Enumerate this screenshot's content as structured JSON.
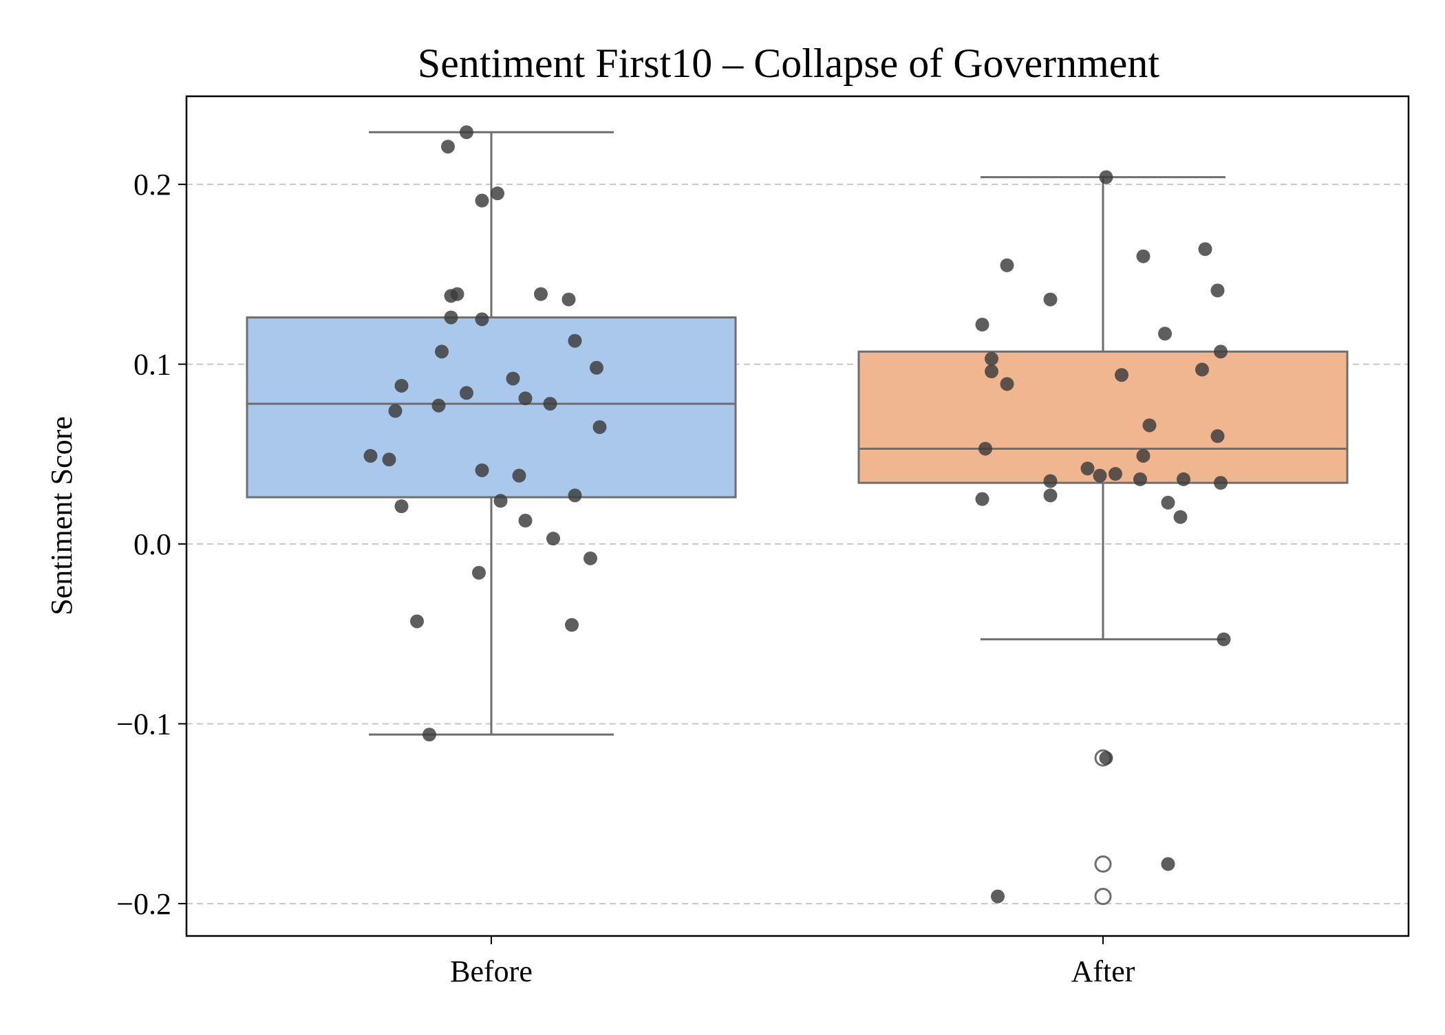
{
  "chart_data": {
    "type": "box",
    "title": "Sentiment First10 – Collapse of Government",
    "xlabel": "",
    "ylabel": "Sentiment Score",
    "ylim": [
      -0.218,
      0.249
    ],
    "yticks": [
      {
        "value": 0.2,
        "label": "0.2"
      },
      {
        "value": 0.1,
        "label": "0.1"
      },
      {
        "value": 0.0,
        "label": "0.0"
      },
      {
        "value": -0.1,
        "label": "−0.1"
      },
      {
        "value": -0.2,
        "label": "−0.2"
      }
    ],
    "grid": "y-dashed",
    "categories": [
      "Before",
      "After"
    ],
    "boxes": [
      {
        "category": "Before",
        "color": "#a9c8ec",
        "q1": 0.026,
        "median": 0.078,
        "q3": 0.126,
        "whisker_low": -0.106,
        "whisker_high": 0.229,
        "outliers": []
      },
      {
        "category": "After",
        "color": "#f0b690",
        "q1": 0.034,
        "median": 0.053,
        "q3": 0.107,
        "whisker_low": -0.053,
        "whisker_high": 0.204,
        "outliers": [
          -0.119,
          -0.178,
          -0.196
        ]
      }
    ],
    "points": [
      {
        "category": "Before",
        "x": -0.04,
        "y": 0.229
      },
      {
        "category": "Before",
        "x": -0.07,
        "y": 0.221
      },
      {
        "category": "Before",
        "x": 0.01,
        "y": 0.195
      },
      {
        "category": "Before",
        "x": -0.015,
        "y": 0.191
      },
      {
        "category": "Before",
        "x": -0.055,
        "y": 0.139
      },
      {
        "category": "Before",
        "x": -0.065,
        "y": 0.138
      },
      {
        "category": "Before",
        "x": 0.08,
        "y": 0.139
      },
      {
        "category": "Before",
        "x": 0.125,
        "y": 0.136
      },
      {
        "category": "Before",
        "x": -0.065,
        "y": 0.126
      },
      {
        "category": "Before",
        "x": -0.015,
        "y": 0.125
      },
      {
        "category": "Before",
        "x": 0.135,
        "y": 0.113
      },
      {
        "category": "Before",
        "x": -0.08,
        "y": 0.107
      },
      {
        "category": "Before",
        "x": 0.17,
        "y": 0.098
      },
      {
        "category": "Before",
        "x": 0.035,
        "y": 0.092
      },
      {
        "category": "Before",
        "x": -0.145,
        "y": 0.088
      },
      {
        "category": "Before",
        "x": -0.04,
        "y": 0.084
      },
      {
        "category": "Before",
        "x": 0.055,
        "y": 0.081
      },
      {
        "category": "Before",
        "x": 0.095,
        "y": 0.078
      },
      {
        "category": "Before",
        "x": -0.085,
        "y": 0.077
      },
      {
        "category": "Before",
        "x": -0.155,
        "y": 0.074
      },
      {
        "category": "Before",
        "x": 0.175,
        "y": 0.065
      },
      {
        "category": "Before",
        "x": -0.195,
        "y": 0.049
      },
      {
        "category": "Before",
        "x": -0.165,
        "y": 0.047
      },
      {
        "category": "Before",
        "x": -0.015,
        "y": 0.041
      },
      {
        "category": "Before",
        "x": 0.045,
        "y": 0.038
      },
      {
        "category": "Before",
        "x": 0.135,
        "y": 0.027
      },
      {
        "category": "Before",
        "x": 0.015,
        "y": 0.024
      },
      {
        "category": "Before",
        "x": -0.145,
        "y": 0.021
      },
      {
        "category": "Before",
        "x": 0.055,
        "y": 0.013
      },
      {
        "category": "Before",
        "x": 0.1,
        "y": 0.003
      },
      {
        "category": "Before",
        "x": 0.16,
        "y": -0.008
      },
      {
        "category": "Before",
        "x": -0.02,
        "y": -0.016
      },
      {
        "category": "Before",
        "x": -0.12,
        "y": -0.043
      },
      {
        "category": "Before",
        "x": 0.13,
        "y": -0.045
      },
      {
        "category": "Before",
        "x": -0.1,
        "y": -0.106
      },
      {
        "category": "After",
        "x": 0.005,
        "y": 0.204
      },
      {
        "category": "After",
        "x": 0.165,
        "y": 0.164
      },
      {
        "category": "After",
        "x": 0.065,
        "y": 0.16
      },
      {
        "category": "After",
        "x": -0.155,
        "y": 0.155
      },
      {
        "category": "After",
        "x": 0.185,
        "y": 0.141
      },
      {
        "category": "After",
        "x": -0.085,
        "y": 0.136
      },
      {
        "category": "After",
        "x": -0.195,
        "y": 0.122
      },
      {
        "category": "After",
        "x": 0.1,
        "y": 0.117
      },
      {
        "category": "After",
        "x": 0.19,
        "y": 0.107
      },
      {
        "category": "After",
        "x": -0.18,
        "y": 0.103
      },
      {
        "category": "After",
        "x": 0.16,
        "y": 0.097
      },
      {
        "category": "After",
        "x": -0.18,
        "y": 0.096
      },
      {
        "category": "After",
        "x": 0.03,
        "y": 0.094
      },
      {
        "category": "After",
        "x": -0.155,
        "y": 0.089
      },
      {
        "category": "After",
        "x": 0.075,
        "y": 0.066
      },
      {
        "category": "After",
        "x": 0.185,
        "y": 0.06
      },
      {
        "category": "After",
        "x": -0.19,
        "y": 0.053
      },
      {
        "category": "After",
        "x": 0.065,
        "y": 0.049
      },
      {
        "category": "After",
        "x": -0.025,
        "y": 0.042
      },
      {
        "category": "After",
        "x": 0.02,
        "y": 0.039
      },
      {
        "category": "After",
        "x": -0.005,
        "y": 0.038
      },
      {
        "category": "After",
        "x": 0.06,
        "y": 0.036
      },
      {
        "category": "After",
        "x": 0.13,
        "y": 0.036
      },
      {
        "category": "After",
        "x": -0.085,
        "y": 0.035
      },
      {
        "category": "After",
        "x": 0.19,
        "y": 0.034
      },
      {
        "category": "After",
        "x": -0.085,
        "y": 0.027
      },
      {
        "category": "After",
        "x": -0.195,
        "y": 0.025
      },
      {
        "category": "After",
        "x": 0.105,
        "y": 0.023
      },
      {
        "category": "After",
        "x": 0.125,
        "y": 0.015
      },
      {
        "category": "After",
        "x": 0.195,
        "y": -0.053
      },
      {
        "category": "After",
        "x": 0.005,
        "y": -0.119
      },
      {
        "category": "After",
        "x": 0.105,
        "y": -0.178
      },
      {
        "category": "After",
        "x": -0.17,
        "y": -0.196
      }
    ],
    "colors": {
      "point": "#3a3a3a",
      "box_edge": "#6e6e6e",
      "grid": "#c8c8c8"
    }
  }
}
